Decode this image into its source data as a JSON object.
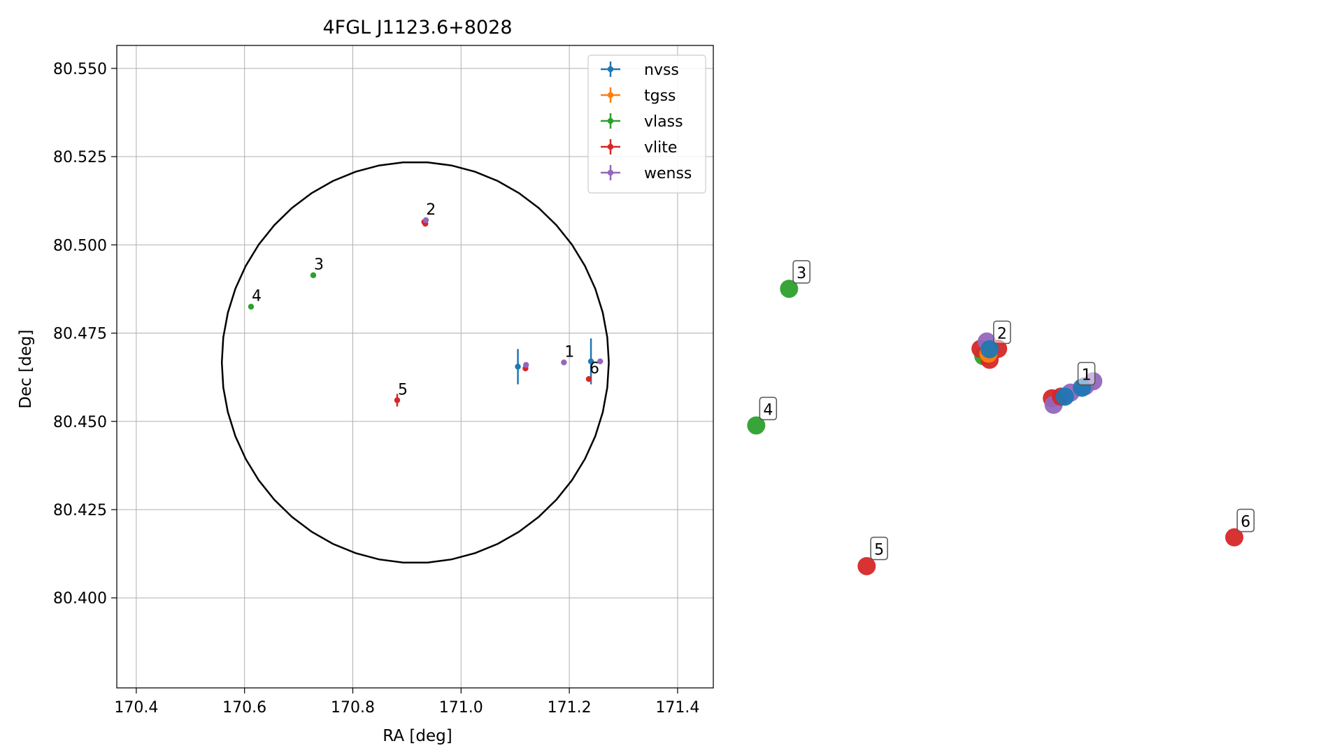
{
  "chart_data": [
    {
      "type": "scatter",
      "title": "4FGL J1123.6+8028",
      "xlabel": "RA [deg]",
      "ylabel": "Dec [deg]",
      "xlim": [
        170.364,
        171.466
      ],
      "ylim": [
        80.3745,
        80.5565
      ],
      "xticks": [
        170.4,
        170.6,
        170.8,
        171.0,
        171.2,
        171.4
      ],
      "xtick_labels": [
        "170.4",
        "170.6",
        "170.8",
        "171.0",
        "171.2",
        "171.4"
      ],
      "yticks": [
        80.4,
        80.425,
        80.45,
        80.475,
        80.5,
        80.525,
        80.55
      ],
      "ytick_labels": [
        "80.400",
        "80.425",
        "80.450",
        "80.475",
        "80.500",
        "80.525",
        "80.550"
      ],
      "grid": true,
      "legend": "top-right",
      "ellipse": {
        "center_ra": 170.9155,
        "center_dec": 80.4667,
        "ra_semi": 0.3575,
        "dec_semi": 0.0568
      },
      "series": [
        {
          "name": "nvss",
          "color": "#1f77b4",
          "points": [
            {
              "ra": 171.105,
              "dec": 80.4655,
              "ra_err": 0.003,
              "dec_err": 0.005
            },
            {
              "ra": 171.24,
              "dec": 80.467,
              "ra_err": 0.003,
              "dec_err": 0.0065
            }
          ]
        },
        {
          "name": "tgss",
          "color": "#ff7f0e",
          "points": []
        },
        {
          "name": "vlass",
          "color": "#2ca02c",
          "points": [
            {
              "ra": 170.727,
              "dec": 80.4914,
              "ra_err": 0.001,
              "dec_err": 0.0004
            },
            {
              "ra": 170.612,
              "dec": 80.4825,
              "ra_err": 0.001,
              "dec_err": 0.0004
            }
          ]
        },
        {
          "name": "vlite",
          "color": "#d62728",
          "points": [
            {
              "ra": 170.934,
              "dec": 80.506,
              "ra_err": 0.002,
              "dec_err": 0.0007
            },
            {
              "ra": 170.932,
              "dec": 80.5065,
              "ra_err": 0.002,
              "dec_err": 0.0007
            },
            {
              "ra": 171.119,
              "dec": 80.465,
              "ra_err": 0.002,
              "dec_err": 0.0007
            },
            {
              "ra": 171.236,
              "dec": 80.462,
              "ra_err": 0.002,
              "dec_err": 0.0007
            },
            {
              "ra": 170.882,
              "dec": 80.456,
              "ra_err": 0.002,
              "dec_err": 0.0018
            }
          ]
        },
        {
          "name": "wenss",
          "color": "#9467bd",
          "points": [
            {
              "ra": 170.935,
              "dec": 80.507,
              "ra_err": 0.002,
              "dec_err": 0.0006
            },
            {
              "ra": 171.12,
              "dec": 80.466,
              "ra_err": 0.002,
              "dec_err": 0.0006
            },
            {
              "ra": 171.19,
              "dec": 80.4667,
              "ra_err": 0.002,
              "dec_err": 0.0006
            },
            {
              "ra": 171.257,
              "dec": 80.467,
              "ra_err": 0.002,
              "dec_err": 0.0006
            }
          ]
        }
      ],
      "annotations": [
        {
          "text": "1",
          "ra": 171.19,
          "dec": 80.4667
        },
        {
          "text": "2",
          "ra": 170.934,
          "dec": 80.507
        },
        {
          "text": "3",
          "ra": 170.727,
          "dec": 80.4914
        },
        {
          "text": "4",
          "ra": 170.612,
          "dec": 80.4825
        },
        {
          "text": "5",
          "ra": 170.882,
          "dec": 80.456
        },
        {
          "text": "6",
          "ra": 171.236,
          "dec": 80.462
        }
      ]
    },
    {
      "type": "scatter",
      "title": "",
      "axes": false,
      "xlim": [
        0,
        100
      ],
      "ylim": [
        0,
        100
      ],
      "points": [
        {
          "x": 7.2,
          "y": 73.6,
          "color": "#2ca02c"
        },
        {
          "x": 1.4,
          "y": 39.9,
          "color": "#2ca02c"
        },
        {
          "x": 20.9,
          "y": 5.2,
          "color": "#d62728"
        },
        {
          "x": 85.8,
          "y": 12.3,
          "color": "#d62728"
        },
        {
          "x": 41.5,
          "y": 57.0,
          "color": "#2ca02c"
        },
        {
          "x": 41.0,
          "y": 58.8,
          "color": "#d62728"
        },
        {
          "x": 42.6,
          "y": 56.1,
          "color": "#d62728"
        },
        {
          "x": 44.1,
          "y": 58.8,
          "color": "#d62728"
        },
        {
          "x": 42.1,
          "y": 60.6,
          "color": "#9467bd"
        },
        {
          "x": 42.4,
          "y": 57.6,
          "color": "#ff7f0e"
        },
        {
          "x": 42.6,
          "y": 58.7,
          "color": "#1f77b4"
        },
        {
          "x": 53.6,
          "y": 46.6,
          "color": "#d62728"
        },
        {
          "x": 53.9,
          "y": 45.0,
          "color": "#9467bd"
        },
        {
          "x": 55.2,
          "y": 47.0,
          "color": "#d62728"
        },
        {
          "x": 56.9,
          "y": 48.0,
          "color": "#9467bd"
        },
        {
          "x": 59.5,
          "y": 49.6,
          "color": "#9467bd"
        },
        {
          "x": 60.9,
          "y": 50.8,
          "color": "#9467bd"
        },
        {
          "x": 55.9,
          "y": 47.0,
          "color": "#1f77b4"
        },
        {
          "x": 58.9,
          "y": 49.2,
          "color": "#1f77b4"
        }
      ],
      "labels": [
        {
          "text": "1",
          "x": 59.7,
          "y": 52.5
        },
        {
          "text": "2",
          "x": 44.8,
          "y": 62.7
        },
        {
          "text": "3",
          "x": 9.4,
          "y": 77.6
        },
        {
          "text": "4",
          "x": 3.5,
          "y": 43.9
        },
        {
          "text": "5",
          "x": 23.1,
          "y": 9.4
        },
        {
          "text": "6",
          "x": 87.8,
          "y": 16.3
        }
      ]
    }
  ]
}
